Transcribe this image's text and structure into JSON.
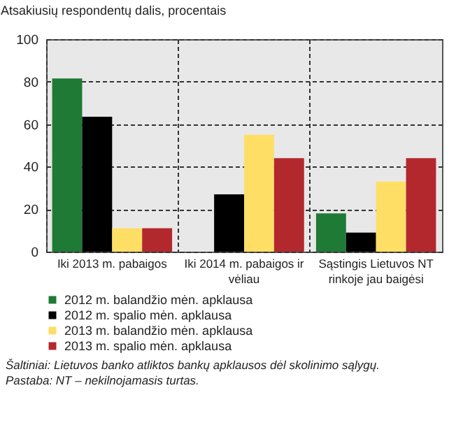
{
  "chart_data": {
    "type": "bar",
    "ylabel": "Atsakiusių respondentų dalis, procentais",
    "categories": [
      "Iki 2013 m. pabaigos",
      "Iki 2014 m. pabaigos ir vėliau",
      "Sąstingis Lietuvos NT rinkoje jau baigėsi"
    ],
    "series": [
      {
        "name": "2012 m. balandžio mėn. apklausa",
        "color": "#1f7a35",
        "values": [
          81.5,
          0,
          18
        ]
      },
      {
        "name": "2012 m. spalio mėn. apklausa",
        "color": "#000000",
        "values": [
          63.5,
          27,
          9
        ]
      },
      {
        "name": "2013 m. balandžio mėn. apklausa",
        "color": "#ffde66",
        "values": [
          11,
          55,
          33
        ]
      },
      {
        "name": "2013 m. spalio mėn. apklausa",
        "color": "#b3282d",
        "values": [
          11,
          44,
          44
        ]
      }
    ],
    "ylim": [
      0,
      100
    ],
    "yticks": [
      0,
      20,
      40,
      60,
      80,
      100
    ],
    "grid": true,
    "legend": "bottom",
    "annotations": [
      "Šaltiniai: Lietuvos banko atliktos bankų apklausos dėl skolinimo sąlygų.",
      "Pastaba: NT – nekilnojamasis turtas."
    ]
  }
}
